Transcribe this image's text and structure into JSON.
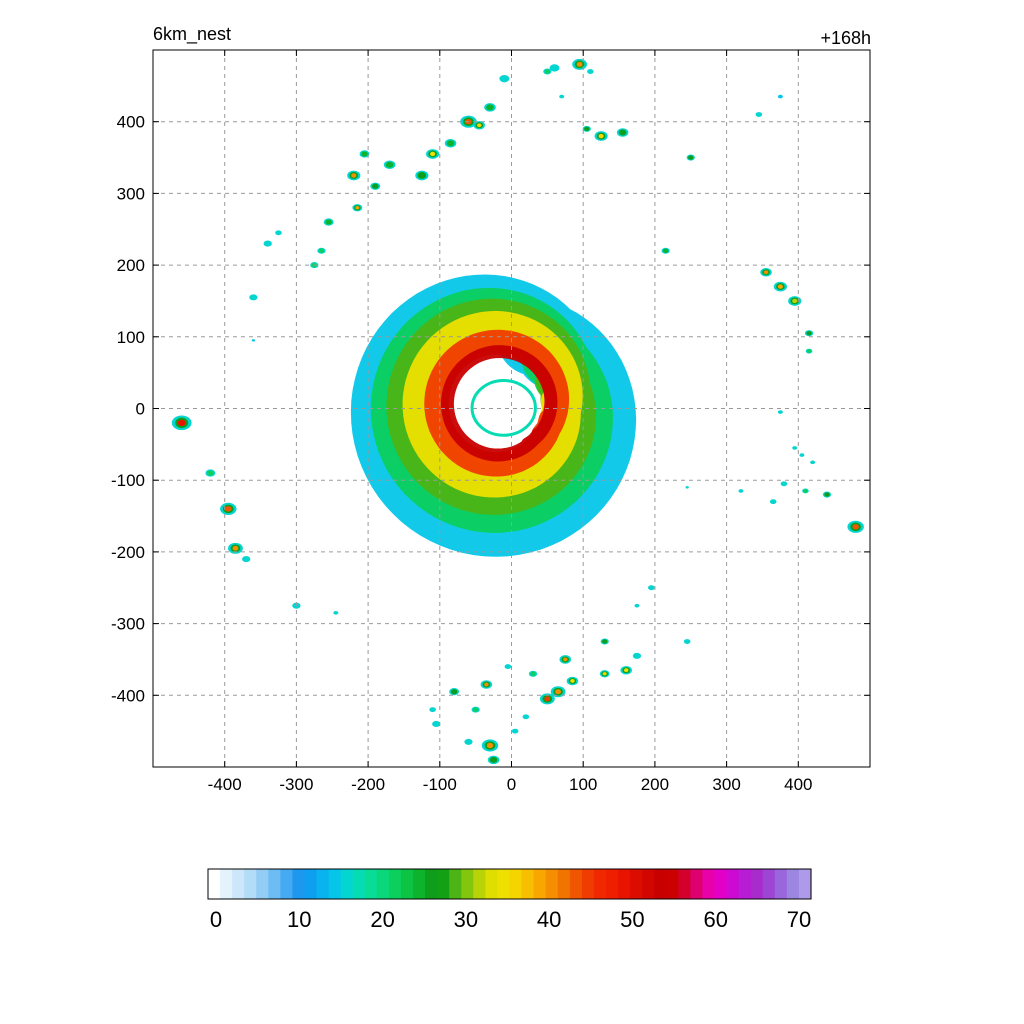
{
  "chart_data": {
    "type": "heatmap",
    "title_left": "6km_nest",
    "title_right": "+168h",
    "xlabel": "",
    "ylabel": "",
    "xlim": [
      -500,
      500
    ],
    "ylim": [
      -500,
      500
    ],
    "x_ticks": [
      -400,
      -300,
      -200,
      -100,
      0,
      100,
      200,
      300,
      400
    ],
    "y_ticks": [
      400,
      300,
      200,
      100,
      0,
      -100,
      -200,
      -300,
      -400
    ],
    "grid": true,
    "colorbar": {
      "min": 0,
      "max": 70,
      "labels": [
        0,
        10,
        20,
        30,
        40,
        50,
        60,
        70
      ],
      "colors": [
        "#ffffff",
        "#e4f2fc",
        "#cde7fa",
        "#b3dcf8",
        "#93cdf6",
        "#6ebcf4",
        "#45aaf2",
        "#1e98ef",
        "#0f9ff0",
        "#08b3ee",
        "#05c6e8",
        "#05d5d0",
        "#06dcb4",
        "#08dc96",
        "#0ad77a",
        "#0ccf5e",
        "#0cc344",
        "#0db32c",
        "#0e9e1c",
        "#14a014",
        "#4cb414",
        "#84c60e",
        "#b8d408",
        "#dede00",
        "#eee000",
        "#f5d400",
        "#f8be00",
        "#f8a600",
        "#f58e00",
        "#f27400",
        "#f05600",
        "#f03c00",
        "#f02800",
        "#f01e00",
        "#e81400",
        "#dd0c00",
        "#d20500",
        "#c80000",
        "#cb0000",
        "#d4002c",
        "#df0070",
        "#e800a8",
        "#e200c8",
        "#cc0ad4",
        "#b81cd4",
        "#a82ccc",
        "#9e46d4",
        "#9a66dc",
        "#9c86e0",
        "#ad9bea"
      ]
    },
    "field": {
      "description_units": "km",
      "center": [
        -15,
        5
      ],
      "eye_radius": 40,
      "spiral_bands": [
        {
          "value": 14,
          "r_in": 40,
          "r_out": 160
        },
        {
          "value": 22,
          "r_in": 45,
          "r_out": 140
        },
        {
          "value": 28,
          "r_in": 48,
          "r_out": 125
        },
        {
          "value": 34,
          "r_in": 50,
          "r_out": 110
        },
        {
          "value": 44,
          "r_in": 52,
          "r_out": 90
        },
        {
          "value": 52,
          "r_in": 55,
          "r_out": 75
        }
      ],
      "cells": [
        [
          -460,
          -20,
          12,
          48
        ],
        [
          -395,
          -140,
          10,
          43
        ],
        [
          -385,
          -195,
          9,
          40
        ],
        [
          -420,
          -90,
          6,
          22
        ],
        [
          -370,
          -210,
          5,
          20
        ],
        [
          -360,
          155,
          5,
          20
        ],
        [
          -340,
          230,
          5,
          18
        ],
        [
          -325,
          245,
          4,
          18
        ],
        [
          -300,
          -275,
          5,
          18
        ],
        [
          -275,
          200,
          5,
          22
        ],
        [
          -265,
          220,
          5,
          22
        ],
        [
          -255,
          260,
          6,
          24
        ],
        [
          -245,
          -285,
          3,
          18
        ],
        [
          -220,
          325,
          8,
          40
        ],
        [
          -215,
          280,
          6,
          38
        ],
        [
          -205,
          355,
          6,
          24
        ],
        [
          -190,
          310,
          6,
          26
        ],
        [
          -170,
          340,
          7,
          24
        ],
        [
          -125,
          325,
          8,
          30
        ],
        [
          -110,
          -420,
          4,
          18
        ],
        [
          -105,
          -440,
          5,
          20
        ],
        [
          -110,
          355,
          8,
          34
        ],
        [
          -85,
          370,
          7,
          24
        ],
        [
          -60,
          400,
          10,
          42
        ],
        [
          -45,
          395,
          7,
          36
        ],
        [
          -30,
          420,
          7,
          24
        ],
        [
          -10,
          460,
          6,
          20
        ],
        [
          -80,
          -395,
          6,
          28
        ],
        [
          -60,
          -465,
          5,
          20
        ],
        [
          -50,
          -420,
          5,
          22
        ],
        [
          -35,
          -385,
          7,
          40
        ],
        [
          -30,
          -470,
          10,
          40
        ],
        [
          -25,
          -490,
          7,
          28
        ],
        [
          -5,
          -360,
          4,
          20
        ],
        [
          5,
          -450,
          4,
          20
        ],
        [
          20,
          -430,
          4,
          18
        ],
        [
          30,
          -370,
          5,
          22
        ],
        [
          50,
          -405,
          9,
          44
        ],
        [
          65,
          -395,
          9,
          40
        ],
        [
          75,
          -350,
          7,
          40
        ],
        [
          85,
          -380,
          7,
          34
        ],
        [
          130,
          -325,
          5,
          28
        ],
        [
          130,
          -370,
          6,
          36
        ],
        [
          160,
          -365,
          7,
          34
        ],
        [
          175,
          -345,
          5,
          20
        ],
        [
          195,
          -250,
          4,
          18
        ],
        [
          245,
          -325,
          4,
          20
        ],
        [
          50,
          470,
          5,
          22
        ],
        [
          60,
          475,
          6,
          20
        ],
        [
          95,
          480,
          9,
          40
        ],
        [
          110,
          470,
          4,
          18
        ],
        [
          105,
          390,
          5,
          26
        ],
        [
          125,
          380,
          8,
          36
        ],
        [
          155,
          385,
          7,
          26
        ],
        [
          70,
          435,
          3,
          18
        ],
        [
          250,
          350,
          5,
          26
        ],
        [
          215,
          220,
          5,
          24
        ],
        [
          355,
          190,
          7,
          40
        ],
        [
          375,
          170,
          8,
          38
        ],
        [
          395,
          150,
          8,
          32
        ],
        [
          415,
          105,
          5,
          26
        ],
        [
          415,
          80,
          4,
          22
        ],
        [
          345,
          410,
          4,
          18
        ],
        [
          375,
          435,
          3,
          14
        ],
        [
          375,
          -5,
          3,
          18
        ],
        [
          395,
          -55,
          3,
          18
        ],
        [
          405,
          -65,
          3,
          18
        ],
        [
          420,
          -75,
          3,
          18
        ],
        [
          440,
          -120,
          5,
          26
        ],
        [
          410,
          -115,
          4,
          22
        ],
        [
          380,
          -105,
          4,
          18
        ],
        [
          365,
          -130,
          4,
          18
        ],
        [
          320,
          -115,
          3,
          18
        ],
        [
          480,
          -165,
          10,
          42
        ],
        [
          245,
          -110,
          2,
          16
        ],
        [
          175,
          -275,
          3,
          18
        ],
        [
          -360,
          95,
          2,
          14
        ]
      ]
    }
  }
}
